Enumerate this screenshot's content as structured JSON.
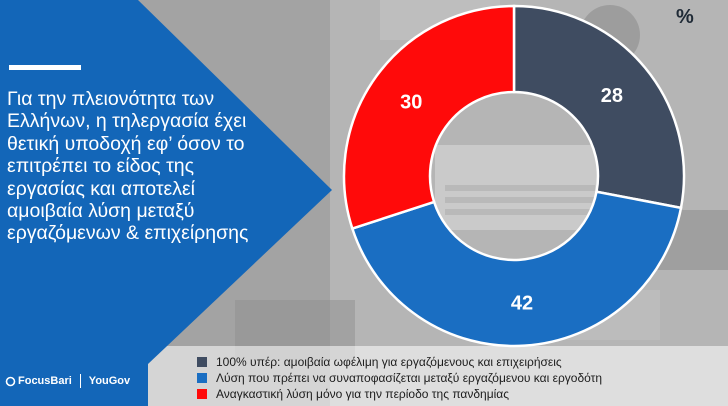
{
  "headline": "Για την πλειονότητα των Ελλήνων, η τηλεργασία έχει θετική υποδοχή εφ’ όσον το επιτρέπει το είδος της εργασίας και αποτελεί αμοιβαία λύση μεταξύ εργαζόμενων & επιχείρησης",
  "logos": {
    "focusbari": "FocusBari",
    "yougov": "YouGov"
  },
  "colors": {
    "panel_blue": "#1366b8",
    "slate": "#3f4c61",
    "blue": "#1a6ec2",
    "red": "#ff0a0a"
  },
  "chart_data": {
    "type": "pie",
    "unit": "%",
    "categories": [
      "100% υπέρ: αμοιβαία ωφέλιμη για εργαζόμενους και επιχειρήσεις",
      "Λύση που πρέπει να συναποφασίζεται μεταξύ εργαζόμενου και εργοδότη",
      "Αναγκαστική λύση μόνο για την περίοδο της πανδημίας"
    ],
    "values": [
      28,
      42,
      30
    ],
    "colors": [
      "#3f4c61",
      "#1a6ec2",
      "#ff0a0a"
    ],
    "donut": true,
    "legend_position": "bottom"
  }
}
